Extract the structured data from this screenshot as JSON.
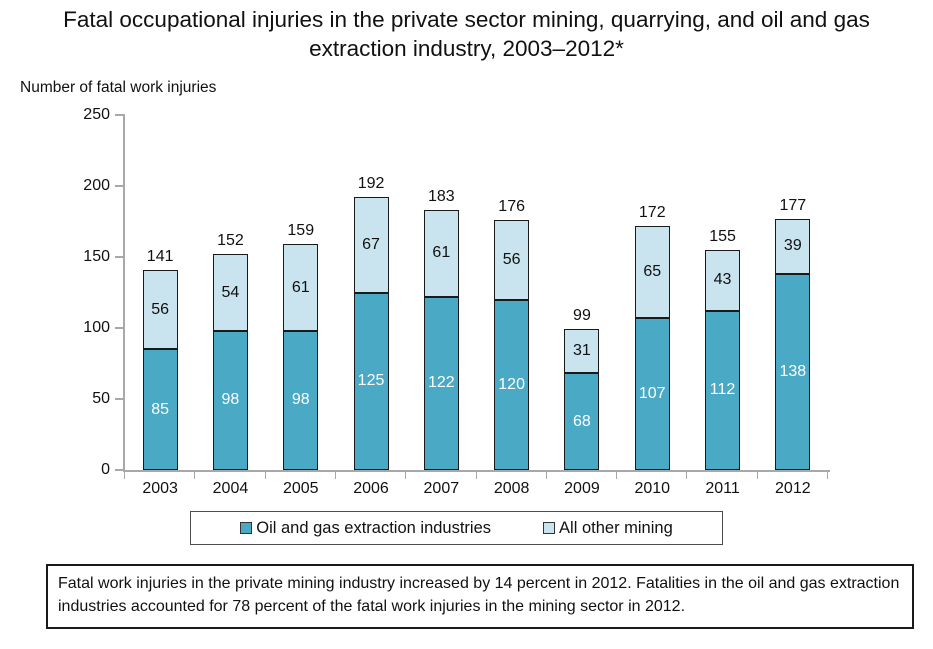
{
  "title": "Fatal occupational injuries in the private sector mining, quarrying, and oil and gas extraction industry, 2003–2012*",
  "y_axis_caption": "Number of fatal work injuries",
  "legend": {
    "oil_gas_label": "Oil and gas extraction industries",
    "other_mining_label": "All other mining"
  },
  "footnote": "Fatal work injuries in the private mining industry increased by 14 percent in 2012. Fatalities in the oil and gas extraction industries accounted for 78 percent of the fatal work injuries in the mining sector in 2012.",
  "colors": {
    "oil_gas": "#4AA9C5",
    "other_mining": "#C9E3EF",
    "bar_border": "#1a1a1a",
    "axis": "#a8a8a8",
    "text": "#111111"
  },
  "chart_data": {
    "type": "bar",
    "stacked": true,
    "title": "Fatal occupational injuries in the private sector mining, quarrying, and oil and gas extraction industry, 2003–2012*",
    "xlabel": "",
    "ylabel": "Number of fatal work injuries",
    "ylim": [
      0,
      250
    ],
    "yticks": [
      0,
      50,
      100,
      150,
      200,
      250
    ],
    "grid": false,
    "legend_position": "bottom",
    "categories": [
      "2003",
      "2004",
      "2005",
      "2006",
      "2007",
      "2008",
      "2009",
      "2010",
      "2011",
      "2012"
    ],
    "series": [
      {
        "name": "Oil and gas extraction industries",
        "color": "#4AA9C5",
        "values": [
          85,
          98,
          98,
          125,
          122,
          120,
          68,
          107,
          112,
          138
        ]
      },
      {
        "name": "All other mining",
        "color": "#C9E3EF",
        "values": [
          56,
          54,
          61,
          67,
          61,
          56,
          31,
          65,
          43,
          39
        ]
      }
    ],
    "totals": [
      141,
      152,
      159,
      192,
      183,
      176,
      99,
      172,
      155,
      177
    ]
  }
}
